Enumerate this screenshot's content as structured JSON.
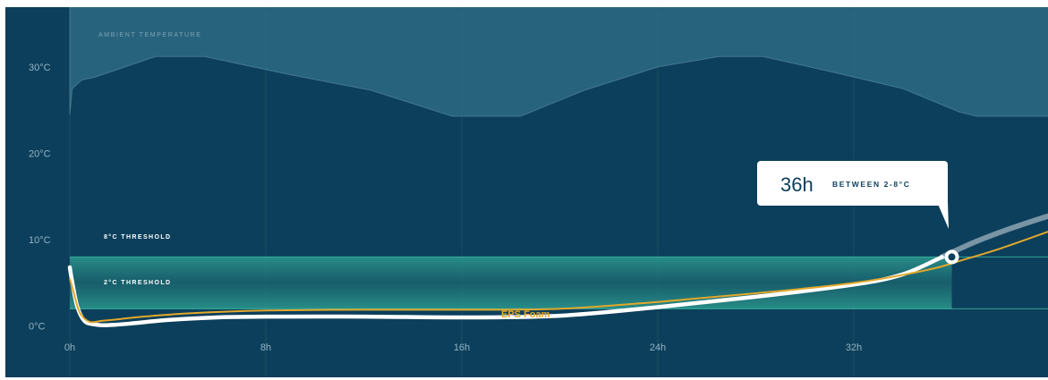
{
  "chart_data": {
    "type": "line",
    "title": "",
    "xlabel": "",
    "ylabel": "",
    "x_ticks": [
      "0h",
      "8h",
      "16h",
      "24h",
      "32h"
    ],
    "y_ticks": [
      "0°C",
      "10°C",
      "20°C",
      "30°C"
    ],
    "xlim": [
      0,
      40
    ],
    "ylim": [
      -5,
      39
    ],
    "grid": "vertical",
    "ambient": {
      "label": "AMBIENT TEMPERATURE",
      "color": "#2e6a84",
      "x": [
        0,
        0.1,
        0.5,
        1,
        3.5,
        5.5,
        9,
        12.3,
        15.6,
        18.4,
        21,
        24,
        26.5,
        28.3,
        31,
        34,
        36.3,
        37,
        40
      ],
      "y": [
        24.5,
        27.5,
        28.5,
        28.8,
        31.2,
        31.2,
        29.1,
        27.3,
        24.3,
        24.3,
        27.3,
        30,
        31.2,
        31.2,
        29.5,
        27.5,
        24.8,
        24.3,
        24.3
      ]
    },
    "band": {
      "range": [
        2,
        8
      ],
      "upper_label": "8°C THRESHOLD",
      "lower_label": "2°C THRESHOLD",
      "color": "#2d9b8f"
    },
    "series": [
      {
        "color": "#ffffff",
        "x": [
          0,
          0.08,
          0.3,
          0.6,
          1,
          1.5,
          2.5,
          4,
          6,
          8,
          12,
          16,
          20,
          24,
          28,
          32,
          34,
          35.6,
          37,
          38.5,
          40
        ],
        "y": [
          6.8,
          5.4,
          2.3,
          0.6,
          0.2,
          0.1,
          0.3,
          0.7,
          1.0,
          1.1,
          1.1,
          1.0,
          1.2,
          2.2,
          3.4,
          4.8,
          6.0,
          8.0,
          9.8,
          11.4,
          12.8
        ]
      },
      {
        "name": "EPS Foam",
        "color": "#e3a82b",
        "x": [
          0,
          0.15,
          0.4,
          0.8,
          1.3,
          2,
          3,
          5,
          8,
          12,
          16,
          20,
          24,
          28,
          32,
          35,
          36.5,
          38,
          40
        ],
        "y": [
          5.5,
          4.0,
          1.6,
          0.5,
          0.6,
          0.8,
          1.1,
          1.5,
          1.8,
          1.9,
          1.9,
          2.0,
          2.8,
          3.8,
          5.0,
          6.5,
          7.7,
          9.0,
          11.0
        ]
      }
    ],
    "annotation": {
      "x": 36,
      "y": 8,
      "value": "36h",
      "text": "BETWEEN 2-8°C"
    }
  }
}
